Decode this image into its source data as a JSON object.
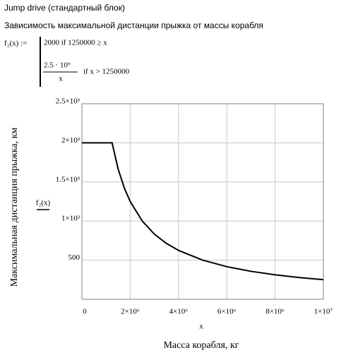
{
  "header": {
    "title": "Jump drive (стандартный блок)",
    "subtitle": "Зависимость максимальной дистанции прыжка от массы корабля"
  },
  "formula": {
    "lhs": "f₂(x) :=",
    "case1": "2000  if  1250000 ≥ x",
    "numerator": "2.5 · 10⁹",
    "denominator": "x",
    "case2": "if  x > 1250000"
  },
  "chart_data": {
    "type": "line",
    "x_var": "x",
    "series_label": "f₂(x)",
    "xlabel": "Масса корабля, кг",
    "ylabel": "Максимальная дистанция прыжка, км",
    "x": [
      0,
      1250000,
      1500000,
      1750000,
      2000000,
      2500000,
      3000000,
      3500000,
      4000000,
      5000000,
      6000000,
      7000000,
      8000000,
      9000000,
      10000000
    ],
    "values": [
      2000,
      2000,
      1666.7,
      1428.6,
      1250,
      1000,
      833.3,
      714.3,
      625,
      500,
      416.7,
      357.1,
      312.5,
      277.8,
      250
    ],
    "color": "#000000",
    "xlim": [
      0,
      10000000
    ],
    "xticks": [
      0,
      {
        "value": 2000000,
        "label": "2×10⁶"
      },
      {
        "value": 4000000,
        "label": "4×10⁶"
      },
      {
        "value": 6000000,
        "label": "6×10⁶"
      },
      {
        "value": 8000000,
        "label": "8×10⁶"
      },
      {
        "value": 10000000,
        "label": "1×10⁷"
      }
    ],
    "ylim": [
      0,
      2500
    ],
    "yticks": [
      500,
      {
        "value": 1000,
        "label": "1×10³"
      },
      {
        "value": 1500,
        "label": "1.5×10³"
      },
      {
        "value": 2000,
        "label": "2×10³"
      },
      {
        "value": 2500,
        "label": "2.5×10³"
      }
    ],
    "grid": true
  }
}
